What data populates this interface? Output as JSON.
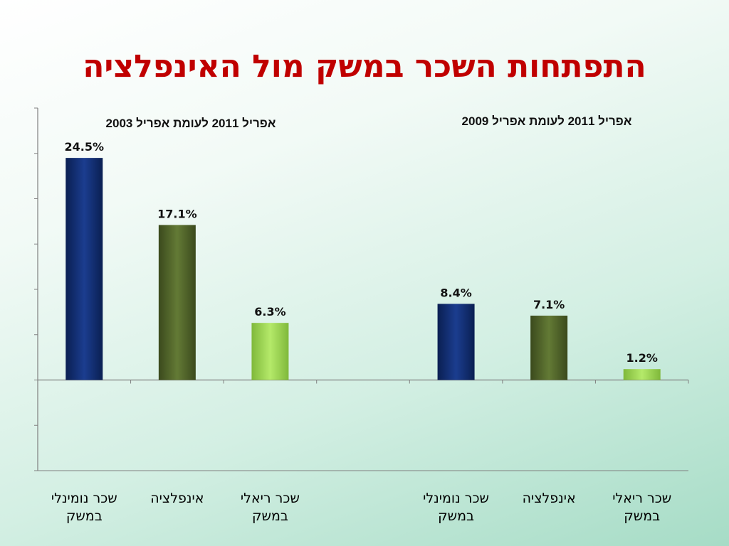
{
  "title": "התפתחות השכר במשק מול האינפלציה",
  "colors": {
    "title": "#c00000",
    "nominal": "#0d2a6b",
    "inflation": "#4f6328",
    "real": "#9bd44f"
  },
  "chart_data": {
    "type": "bar",
    "ylim": [
      -10,
      30
    ],
    "grid": false,
    "groups": [
      {
        "subtitle": "אפריל 2011 לעומת אפריל 2003",
        "categories": [
          "שכר נומינלי במשק",
          "אינפלציה",
          "שכר ריאלי במשק"
        ],
        "values": [
          24.5,
          17.1,
          6.3
        ],
        "value_labels": [
          "24.5%",
          "17.1%",
          "6.3%"
        ]
      },
      {
        "subtitle": "אפריל 2011 לעומת אפריל 2009",
        "categories": [
          "שכר נומינלי במשק",
          "אינפלציה",
          "שכר ריאלי במשק"
        ],
        "values": [
          8.4,
          7.1,
          1.2
        ],
        "value_labels": [
          "8.4%",
          "7.1%",
          "1.2%"
        ]
      }
    ]
  }
}
